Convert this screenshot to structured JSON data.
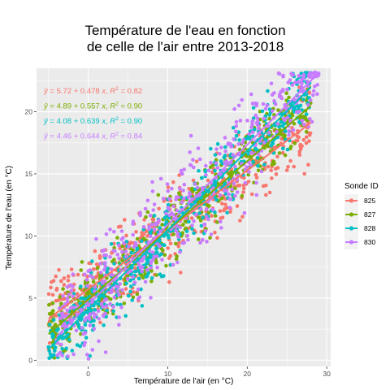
{
  "chart_data": {
    "type": "scatter",
    "title_lines": [
      "Température de l'eau en fonction",
      "de celle de l'air entre 2013-2018"
    ],
    "xlabel": "Température de l'air (en °C)",
    "ylabel": "Température de l'eau (en °C)",
    "xlim": [
      -6.5,
      30.5
    ],
    "ylim": [
      -0.5,
      23.5
    ],
    "xticks": [
      0,
      10,
      20,
      30
    ],
    "yticks": [
      0,
      5,
      10,
      15,
      20
    ],
    "grid": true,
    "legend_title": "Sonde ID",
    "legend_position": "right",
    "series": [
      {
        "name": "825",
        "color": "#F8766D",
        "intercept": 5.72,
        "slope": 0.478,
        "r2": "0.82",
        "x_range": [
          -5,
          28
        ],
        "spread": 1.6,
        "equation": {
          "b": "5.72",
          "a": "0.478",
          "r2": "0.82"
        }
      },
      {
        "name": "827",
        "color": "#7CAE00",
        "intercept": 4.89,
        "slope": 0.557,
        "r2": "0.90",
        "x_range": [
          -5,
          28
        ],
        "spread": 1.3,
        "equation": {
          "b": "4.89",
          "a": "0.557",
          "r2": "0.90"
        }
      },
      {
        "name": "828",
        "color": "#00BFC4",
        "intercept": 4.08,
        "slope": 0.639,
        "r2": "0.90",
        "x_range": [
          -5,
          28
        ],
        "spread": 1.4,
        "equation": {
          "b": "4.08",
          "a": "0.639",
          "r2": "0.90"
        }
      },
      {
        "name": "830",
        "color": "#C77CFF",
        "intercept": 4.46,
        "slope": 0.644,
        "r2": "0.84",
        "x_range": [
          -4,
          29
        ],
        "spread": 2.0,
        "equation": {
          "b": "4.46",
          "a": "0.644",
          "r2": "0.84"
        }
      }
    ]
  }
}
